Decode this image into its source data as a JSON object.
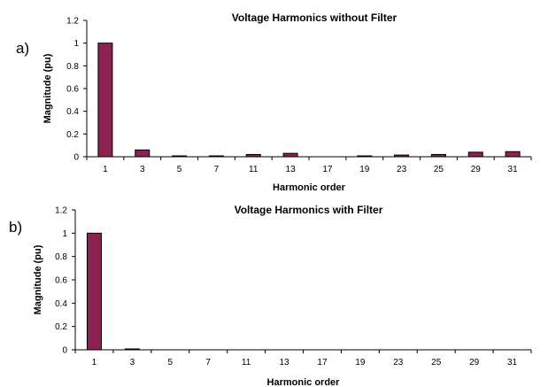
{
  "chart_data": [
    {
      "type": "bar",
      "panel_label": "a)",
      "title": "Voltage Harmonics without Filter",
      "xlabel": "Harmonic order",
      "ylabel": "Magnitude (pu)",
      "ylim": [
        0,
        1.2
      ],
      "yticks": [
        "0",
        "0.2",
        "0.4",
        "0.6",
        "0.8",
        "1",
        "1.2"
      ],
      "categories": [
        "1",
        "3",
        "5",
        "7",
        "11",
        "13",
        "17",
        "19",
        "23",
        "25",
        "29",
        "31"
      ],
      "values": [
        1.0,
        0.06,
        0.005,
        0.005,
        0.02,
        0.03,
        0.0,
        0.005,
        0.015,
        0.02,
        0.04,
        0.045
      ],
      "bar_color": "#8B2252",
      "grid": false,
      "legend": "none"
    },
    {
      "type": "bar",
      "panel_label": "b)",
      "title": "Voltage Harmonics with Filter",
      "xlabel": "Harmonic order",
      "ylabel": "Magnitude (pu)",
      "ylim": [
        0,
        1.2
      ],
      "yticks": [
        "0",
        "0.2",
        "0.4",
        "0.6",
        "0.8",
        "1",
        "1.2"
      ],
      "categories": [
        "1",
        "3",
        "5",
        "7",
        "11",
        "13",
        "17",
        "19",
        "23",
        "25",
        "29",
        "31"
      ],
      "values": [
        1.0,
        0.005,
        0.0,
        0.0,
        0.0,
        0.0,
        0.0,
        0.0,
        0.0,
        0.0,
        0.0,
        0.0
      ],
      "bar_color": "#8B2252",
      "grid": false,
      "legend": "none"
    }
  ]
}
